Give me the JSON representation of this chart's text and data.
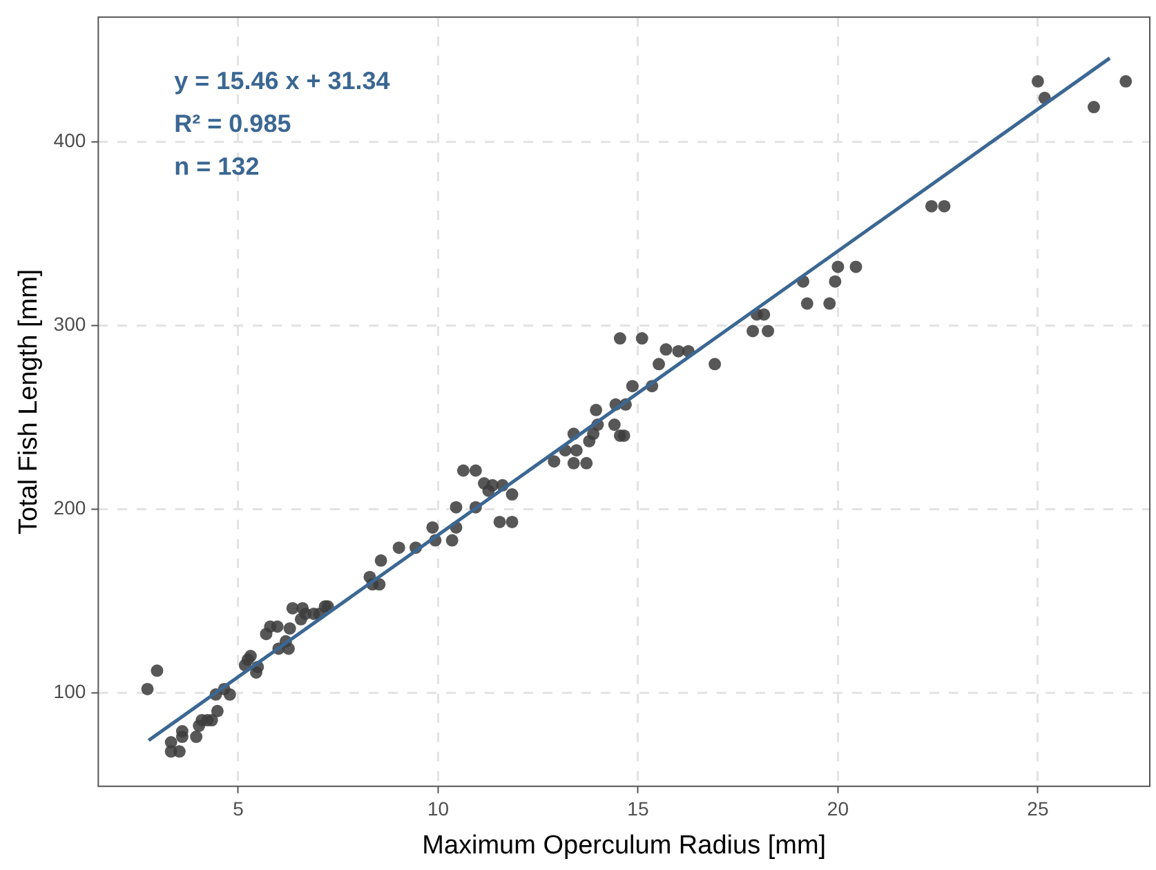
{
  "chart_data": {
    "type": "scatter",
    "xlabel": "Maximum Operculum Radius [mm]",
    "ylabel": "Total Fish Length [mm]",
    "annotations": [
      "y = 15.46 x + 31.34",
      "R² = 0.985",
      "n = 132"
    ],
    "xlim": [
      1.5,
      27.8
    ],
    "ylim": [
      49,
      468
    ],
    "xticks": [
      5,
      10,
      15,
      20,
      25
    ],
    "yticks": [
      100,
      200,
      300,
      400
    ],
    "grid": true,
    "legend": false,
    "marker": "circle",
    "series": [
      {
        "color": "#3d3d3d",
        "x": [
          2.73,
          2.97,
          3.32,
          3.32,
          3.53,
          3.6,
          3.6,
          3.95,
          4.02,
          4.09,
          4.23,
          4.34,
          4.48,
          4.44,
          4.65,
          4.79,
          5.24,
          5.31,
          5.17,
          5.49,
          5.45,
          5.7,
          5.8,
          5.98,
          6.01,
          6.26,
          6.19,
          6.29,
          6.36,
          6.57,
          6.68,
          6.61,
          6.89,
          7.03,
          7.17,
          7.24,
          8.29,
          8.57,
          8.36,
          8.53,
          9.02,
          9.44,
          9.86,
          9.93,
          10.35,
          10.45,
          10.45,
          10.63,
          10.94,
          10.94,
          11.15,
          11.36,
          11.26,
          11.61,
          11.85,
          11.54,
          11.85,
          12.9,
          13.39,
          13.71,
          13.18,
          13.46,
          13.39,
          13.78,
          13.88,
          13.99,
          13.95,
          14.41,
          14.44,
          14.69,
          14.55,
          14.65,
          14.86,
          15.35,
          14.55,
          15.1,
          15.52,
          15.7,
          16.01,
          16.26,
          16.92,
          17.87,
          18.25,
          17.97,
          18.15,
          19.13,
          19.23,
          19.79,
          19.93,
          20.0,
          20.45,
          22.34,
          22.66,
          25.0,
          25.17,
          26.4,
          27.2
        ],
        "values": [
          102,
          112,
          73,
          68,
          68,
          79,
          76,
          76,
          82,
          85,
          85,
          85,
          90,
          99,
          102,
          99,
          118,
          120,
          115,
          114,
          111,
          132,
          136,
          136,
          124,
          124,
          128,
          135,
          146,
          140,
          143,
          146,
          143,
          143,
          147,
          147,
          163,
          172,
          159,
          159,
          179,
          179,
          190,
          183,
          183,
          190,
          201,
          221,
          221,
          201,
          214,
          213,
          210,
          213,
          208,
          193,
          193,
          226,
          225,
          225,
          232,
          232,
          241,
          237,
          241,
          246,
          254,
          246,
          257,
          257,
          240,
          240,
          267,
          267,
          293,
          293,
          279,
          287,
          286,
          286,
          279,
          297,
          297,
          306,
          306,
          324,
          312,
          312,
          324,
          332,
          332,
          365,
          365,
          433,
          424,
          419,
          433
        ]
      },
      {
        "type": "line",
        "marker": "none",
        "color": "#3b6793",
        "x": [
          2.76,
          26.8
        ],
        "values": [
          74.0,
          445.7
        ]
      }
    ]
  }
}
